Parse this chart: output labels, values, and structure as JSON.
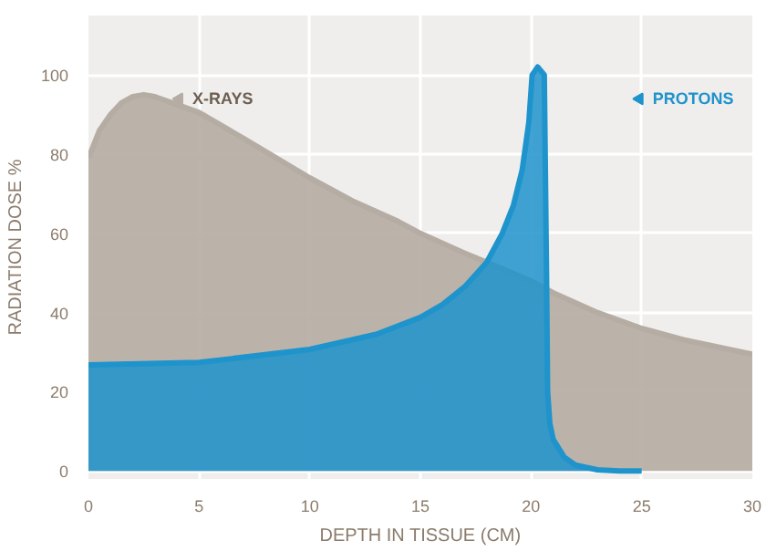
{
  "chart_data": {
    "type": "area",
    "xlabel": "DEPTH IN TISSUE (CM)",
    "ylabel": "RADIATION DOSE %",
    "xlim": [
      0,
      30
    ],
    "ylim": [
      -2,
      115
    ],
    "xticks": [
      0,
      5,
      10,
      15,
      20,
      25,
      30
    ],
    "yticks": [
      0,
      20,
      40,
      60,
      80,
      100
    ],
    "grid": true,
    "legend": "top",
    "series": [
      {
        "name": "X-RAYS",
        "color": "#b5aca3",
        "x": [
          0,
          0.5,
          1,
          1.5,
          2,
          2.5,
          3,
          4,
          5,
          7,
          10,
          12,
          14,
          15,
          17,
          18,
          20,
          21,
          23,
          25,
          27,
          30
        ],
        "values": [
          79,
          86,
          90,
          93,
          94.5,
          95,
          94.5,
          92.5,
          90.5,
          84,
          74,
          68,
          63,
          60,
          55,
          52.7,
          48,
          45,
          40,
          36,
          33,
          29.5
        ]
      },
      {
        "name": "PROTONS",
        "color": "#1f93cc",
        "x": [
          0,
          5,
          10,
          13,
          15,
          16,
          17,
          18,
          18.7,
          19.2,
          19.6,
          19.9,
          20.05,
          20.3,
          20.6,
          20.7,
          20.75,
          20.85,
          21,
          21.5,
          22,
          23,
          24,
          25
        ],
        "values": [
          26.8,
          27.4,
          30.7,
          34.5,
          38.8,
          42,
          46.5,
          52.7,
          60,
          67,
          76,
          88,
          100,
          102,
          100,
          50,
          20,
          12,
          8,
          3.5,
          1.5,
          0.3,
          0,
          0
        ]
      }
    ]
  }
}
